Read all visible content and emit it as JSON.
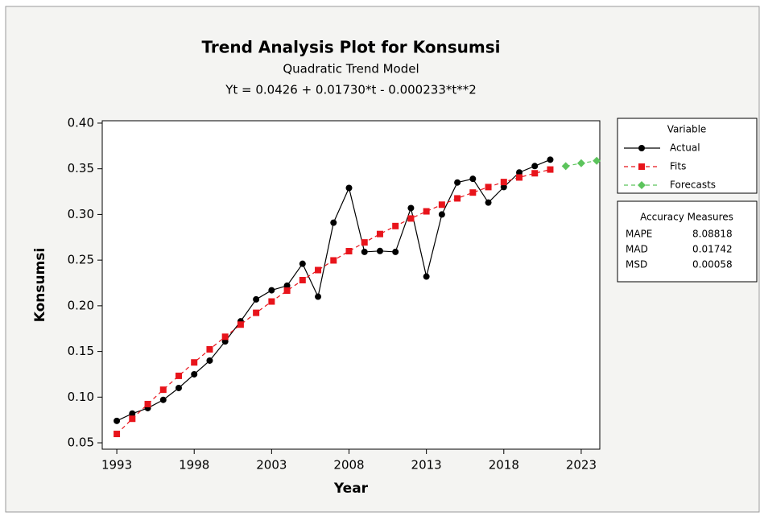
{
  "chart_data": {
    "type": "line",
    "title": "Trend Analysis Plot for Konsumsi",
    "subtitle": "Quadratic Trend Model",
    "equation": "Yt = 0.0426 + 0.01730*t - 0.000233*t**2",
    "x_label": "Year",
    "y_label": "Konsumsi",
    "xlim": [
      1992.06,
      2024.2
    ],
    "ylim": [
      0.043,
      0.4026
    ],
    "xticks": [
      1993,
      1998,
      2003,
      2008,
      2013,
      2018,
      2023
    ],
    "yticks": [
      0.05,
      {
        "value": 0.1,
        "label": "0.10"
      },
      0.15,
      {
        "value": 0.2,
        "label": "0.20"
      },
      0.25,
      {
        "value": 0.3,
        "label": "0.30"
      },
      0.35,
      {
        "value": 0.4,
        "label": "0.40"
      }
    ],
    "legend_title": "Variable",
    "legend_position": "right",
    "series": [
      {
        "name": "Actual",
        "color": "#000000",
        "marker": "circle",
        "dashed": false,
        "x": [
          1993,
          1994,
          1995,
          1996,
          1997,
          1998,
          1999,
          2000,
          2001,
          2002,
          2003,
          2004,
          2005,
          2006,
          2007,
          2008,
          2009,
          2010,
          2011,
          2012,
          2013,
          2014,
          2015,
          2016,
          2017,
          2018,
          2019,
          2020,
          2021
        ],
        "values": [
          0.074,
          0.082,
          0.088,
          0.097,
          0.11,
          0.125,
          0.14,
          0.161,
          0.183,
          0.207,
          0.217,
          0.222,
          0.246,
          0.21,
          0.291,
          0.329,
          0.259,
          0.26,
          0.259,
          0.307,
          0.232,
          0.3,
          0.335,
          0.339,
          0.313,
          0.33,
          0.346,
          0.353,
          0.36
        ]
      },
      {
        "name": "Fits",
        "color": "#e8141b",
        "marker": "square",
        "dashed": true,
        "x": [
          1993,
          1994,
          1995,
          1996,
          1997,
          1998,
          1999,
          2000,
          2001,
          2002,
          2003,
          2004,
          2005,
          2006,
          2007,
          2008,
          2009,
          2010,
          2011,
          2012,
          2013,
          2014,
          2015,
          2016,
          2017,
          2018,
          2019,
          2020,
          2021
        ],
        "values": [
          0.0597,
          0.0763,
          0.0924,
          0.1081,
          0.1233,
          0.138,
          0.1523,
          0.1661,
          0.1794,
          0.1923,
          0.2047,
          0.2166,
          0.2281,
          0.2391,
          0.2497,
          0.2598,
          0.2694,
          0.2786,
          0.2873,
          0.2956,
          0.3034,
          0.3107,
          0.3176,
          0.324,
          0.33,
          0.3355,
          0.3405,
          0.3451,
          0.3492
        ]
      },
      {
        "name": "Forecasts",
        "color": "#5cc45c",
        "marker": "diamond",
        "dashed": true,
        "x": [
          2022,
          2023,
          2024
        ],
        "values": [
          0.3529,
          0.3561,
          0.3588
        ]
      }
    ],
    "accuracy": {
      "title": "Accuracy Measures",
      "rows": [
        [
          "MAPE",
          "8.08818"
        ],
        [
          "MAD",
          "0.01742"
        ],
        [
          "MSD",
          "0.00058"
        ]
      ]
    }
  }
}
